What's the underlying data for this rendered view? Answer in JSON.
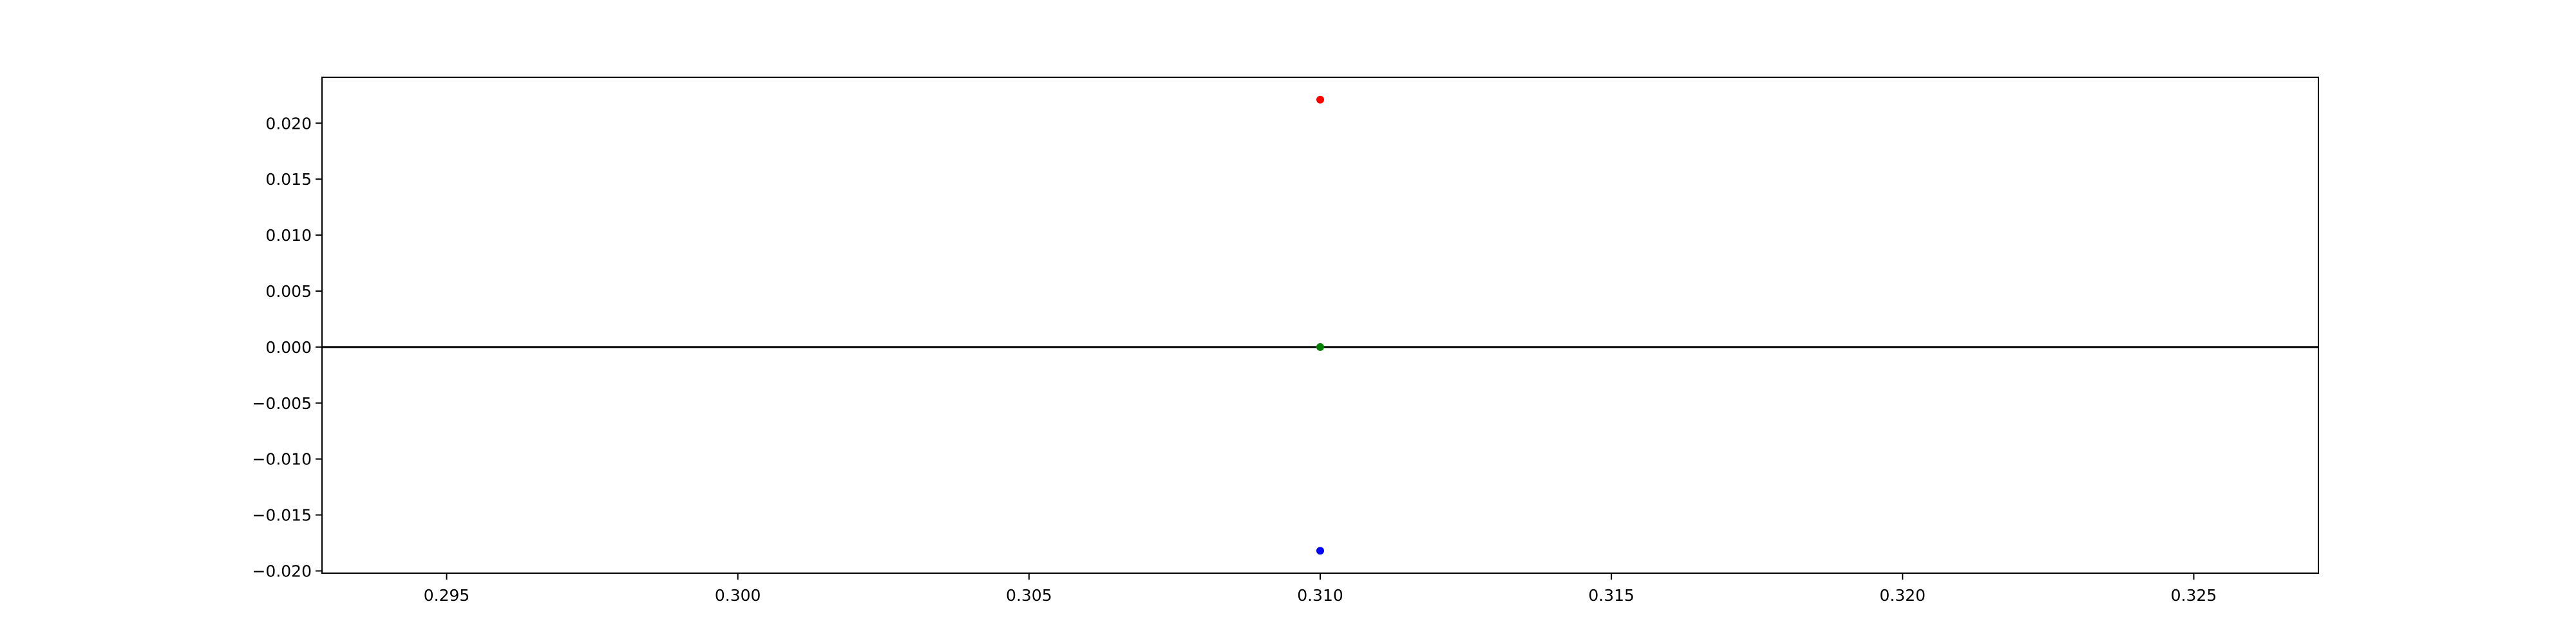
{
  "chart_data": {
    "type": "scatter",
    "title": "",
    "xlabel": "",
    "ylabel": "",
    "xlim": [
      0.29286,
      0.32714
    ],
    "ylim": [
      -0.0202,
      0.0241
    ],
    "x_ticks": [
      0.295,
      0.3,
      0.305,
      0.31,
      0.315,
      0.32,
      0.325
    ],
    "x_tick_labels": [
      "0.295",
      "0.300",
      "0.305",
      "0.310",
      "0.315",
      "0.320",
      "0.325"
    ],
    "y_ticks": [
      0.02,
      0.015,
      0.01,
      0.005,
      0.0,
      -0.005,
      -0.01,
      -0.015,
      -0.02
    ],
    "y_tick_labels": [
      "0.020",
      "0.015",
      "0.010",
      "0.005",
      "0.000",
      "−0.005",
      "−0.010",
      "−0.015",
      "−0.020"
    ],
    "grid": false,
    "reference_lines": [
      {
        "orientation": "horizontal",
        "y": 0.0,
        "color": "#000000"
      }
    ],
    "points": [
      {
        "x": 0.31,
        "y": 0.0221,
        "color": "#ff0000"
      },
      {
        "x": 0.31,
        "y": 0.0,
        "color": "#008000"
      },
      {
        "x": 0.31,
        "y": -0.0182,
        "color": "#0000ff"
      }
    ]
  }
}
